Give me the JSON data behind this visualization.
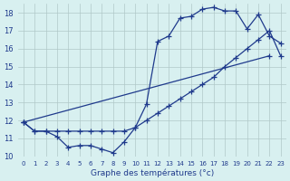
{
  "hours": [
    0,
    1,
    2,
    3,
    4,
    5,
    6,
    7,
    8,
    9,
    10,
    11,
    12,
    13,
    14,
    15,
    16,
    17,
    18,
    19,
    20,
    21,
    22,
    23
  ],
  "line1": [
    11.9,
    11.4,
    11.4,
    11.1,
    10.5,
    10.6,
    10.6,
    10.4,
    10.2,
    10.8,
    11.6,
    12.9,
    16.4,
    16.7,
    17.7,
    17.8,
    18.2,
    18.3,
    18.1,
    18.1,
    17.1,
    17.9,
    16.7,
    16.3
  ],
  "line2": [
    11.9,
    11.4,
    11.4,
    11.4,
    11.4,
    11.4,
    11.4,
    11.4,
    11.4,
    11.4,
    11.6,
    12.0,
    12.4,
    12.8,
    13.2,
    13.6,
    14.0,
    14.4,
    15.0,
    15.5,
    16.0,
    16.5,
    17.0,
    15.6
  ],
  "line3": [
    11.9,
    null,
    null,
    null,
    null,
    null,
    null,
    null,
    null,
    null,
    11.6,
    null,
    null,
    null,
    null,
    null,
    null,
    null,
    null,
    null,
    null,
    null,
    null,
    15.6
  ],
  "line_color": "#1f3a8c",
  "bg_color": "#d8f0f0",
  "grid_color": "#b0c8c8",
  "xlabel": "Graphe des températures (°c)",
  "ylabel_ticks": [
    10,
    11,
    12,
    13,
    14,
    15,
    16,
    17,
    18
  ],
  "xlim": [
    -0.5,
    23.5
  ],
  "ylim": [
    10.0,
    18.5
  ],
  "title": ""
}
